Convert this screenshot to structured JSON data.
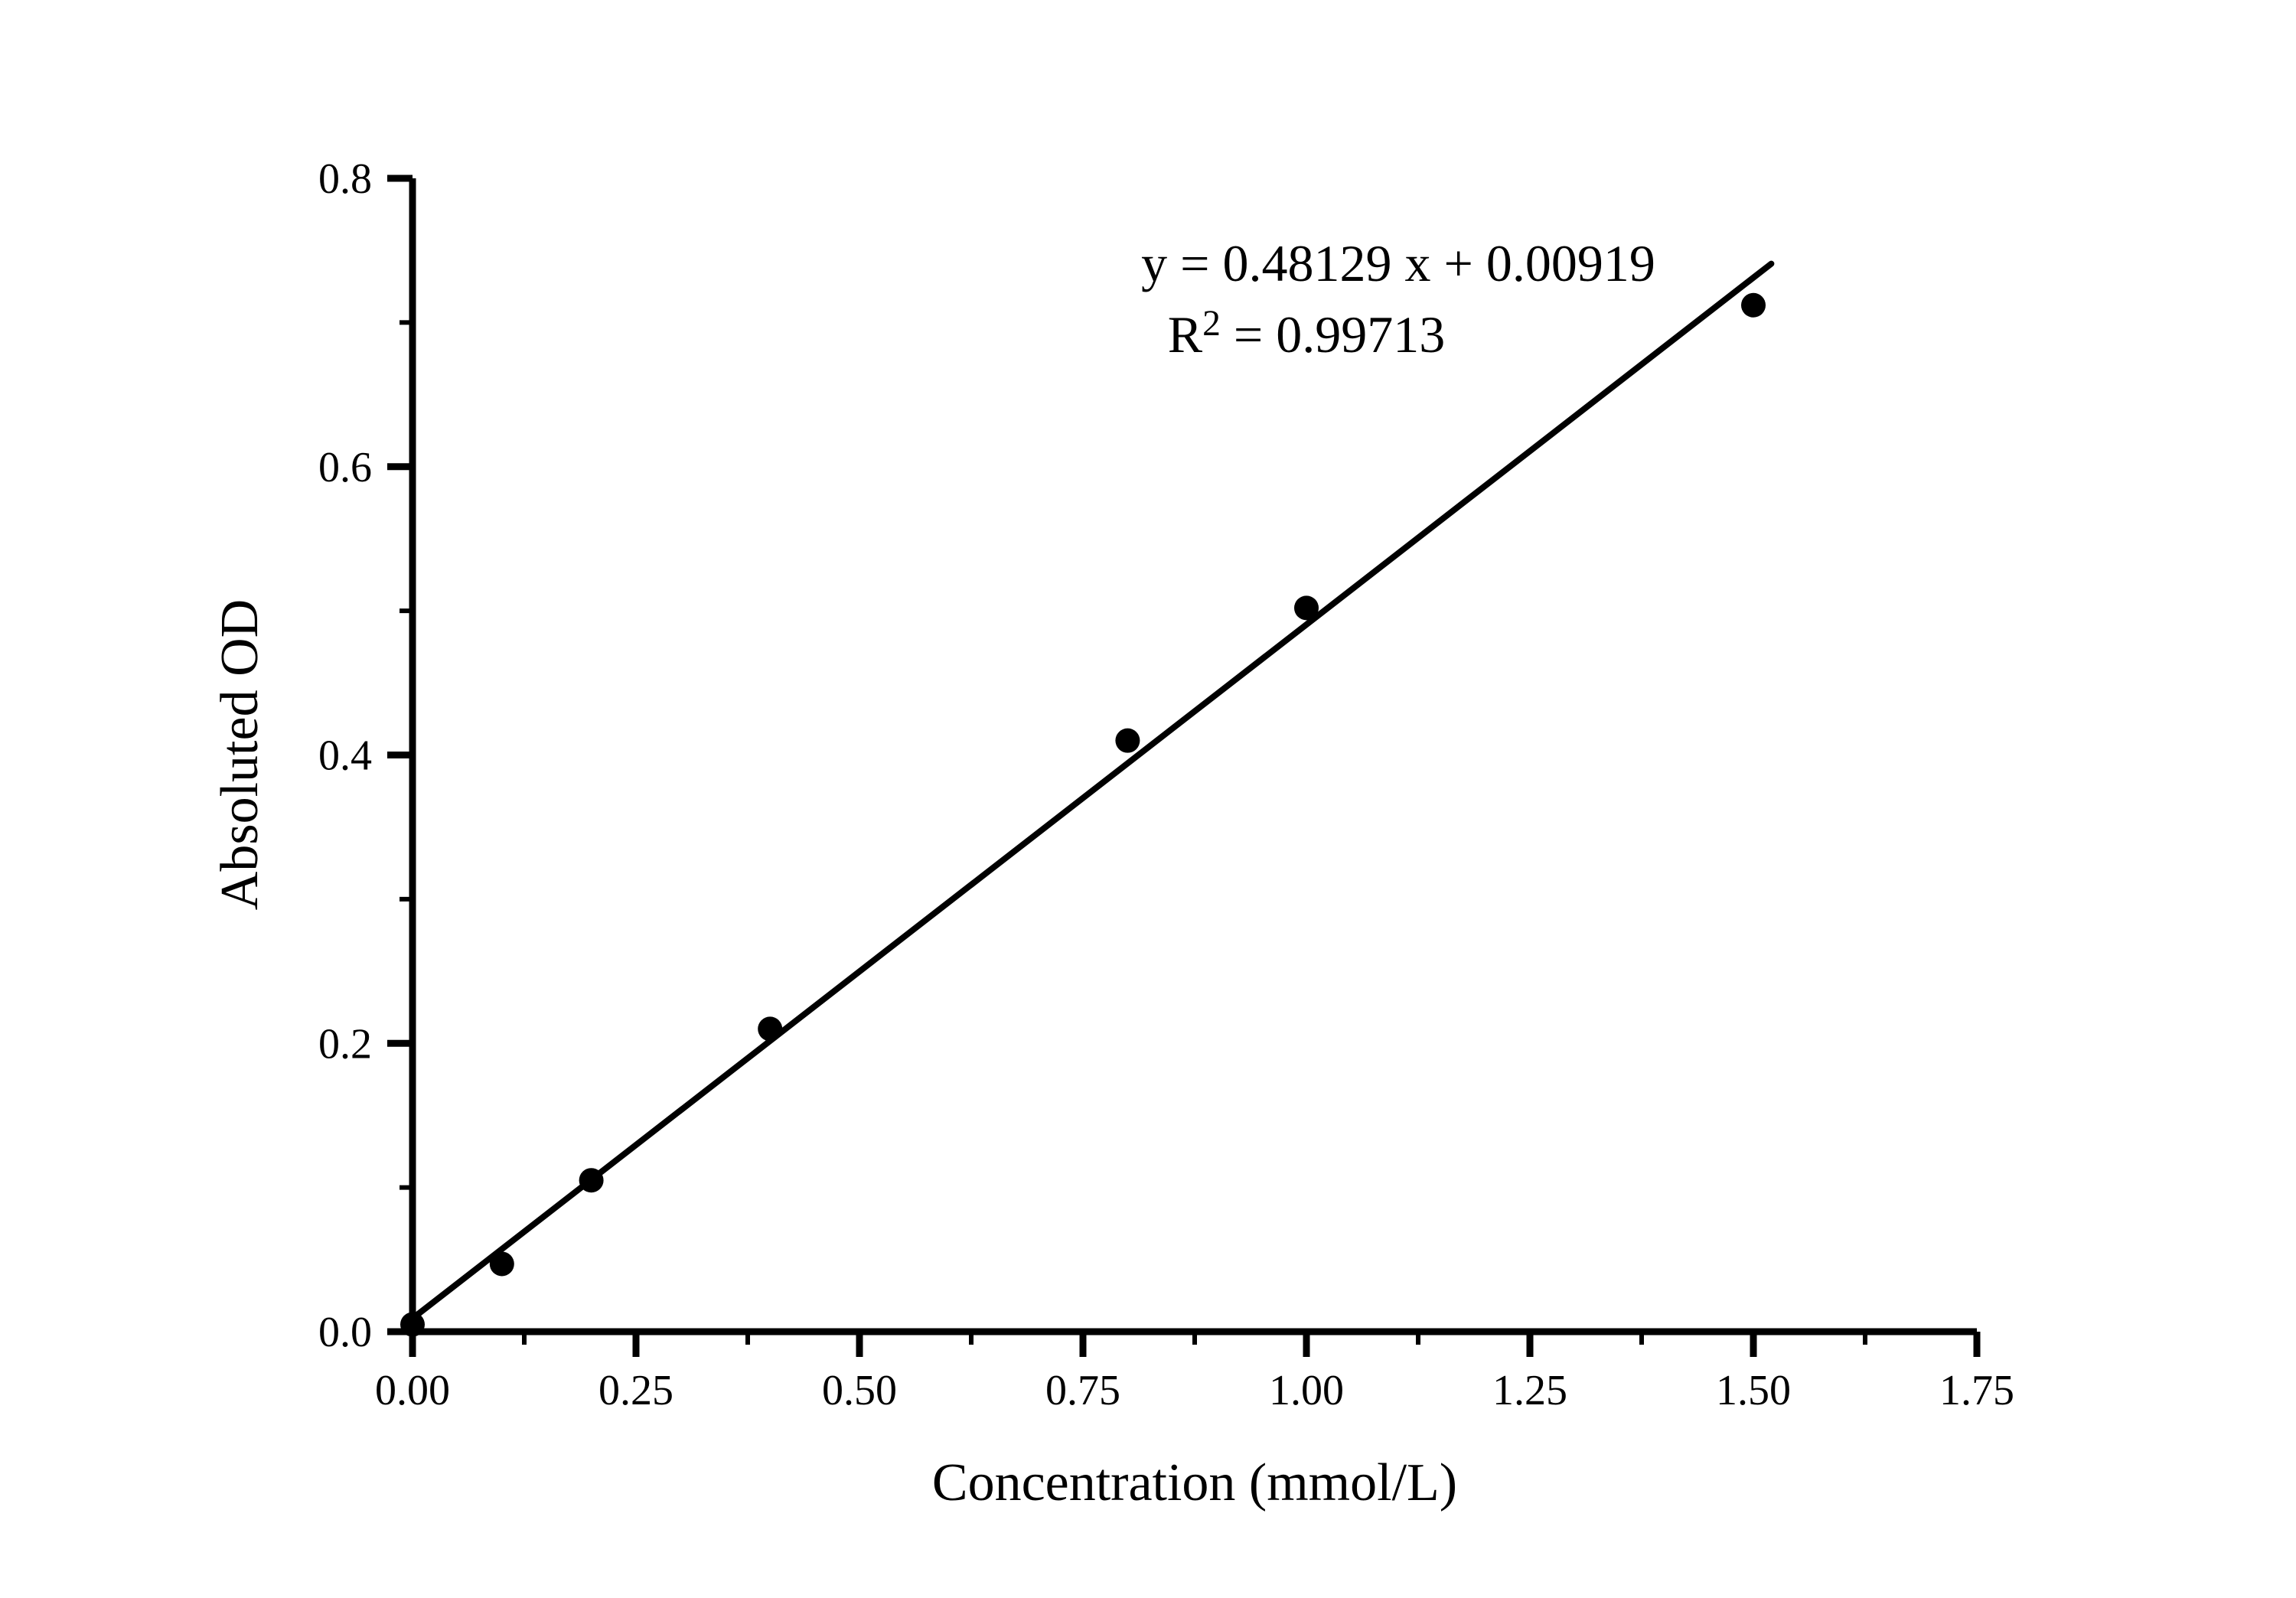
{
  "figure": {
    "background": "#ffffff",
    "foreground": "#000000"
  },
  "chart_data": {
    "type": "scatter",
    "title": "",
    "xlabel": "Concentration (mmol/L)",
    "ylabel": "Absoluted OD",
    "x_range": [
      0,
      1.75
    ],
    "y_range": [
      0,
      0.8
    ],
    "grid": false,
    "legend": "none",
    "marker": {
      "shape": "circle",
      "color": "#000000",
      "radius_px": 16
    },
    "line_color": "#000000",
    "axis_color": "#000000",
    "x_tick_values": [
      0,
      0.25,
      0.5,
      0.75,
      1.0,
      1.25,
      1.5,
      1.75
    ],
    "x_tick_labels": [
      "0.00",
      "0.25",
      "0.50",
      "0.75",
      "1.00",
      "1.25",
      "1.50",
      "1.75"
    ],
    "x_minor_tick_values": [
      0.125,
      0.375,
      0.625,
      0.875,
      1.125,
      1.375,
      1.625
    ],
    "y_tick_values": [
      0,
      0.2,
      0.4,
      0.6,
      0.8
    ],
    "y_tick_labels": [
      "0.0",
      "0.2",
      "0.4",
      "0.6",
      "0.8"
    ],
    "y_minor_tick_values": [
      0.1,
      0.3,
      0.5,
      0.7
    ],
    "points": [
      {
        "x": 0.0,
        "y": 0.005
      },
      {
        "x": 0.1,
        "y": 0.047
      },
      {
        "x": 0.2,
        "y": 0.105
      },
      {
        "x": 0.4,
        "y": 0.21
      },
      {
        "x": 0.8,
        "y": 0.41
      },
      {
        "x": 1.0,
        "y": 0.502
      },
      {
        "x": 1.5,
        "y": 0.712
      }
    ],
    "fit": {
      "type": "linear",
      "slope": 0.48129,
      "intercept": 0.00919,
      "r_squared": 0.99713,
      "x_start": 0,
      "x_end": 1.52
    },
    "annotation": {
      "equation_text": "y = 0.48129 x + 0.00919",
      "r2_base": "R",
      "r2_superscript": "2",
      "r2_rest": " = 0.99713"
    }
  }
}
